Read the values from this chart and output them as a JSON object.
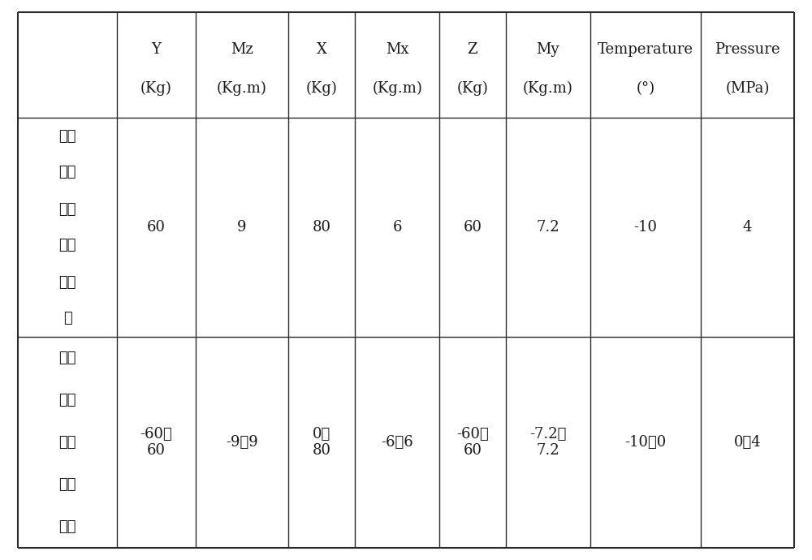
{
  "col_headers_line1": [
    "",
    "Y",
    "Mz",
    "X",
    "Mx",
    "Z",
    "My",
    "Temperature",
    "Pressure"
  ],
  "col_headers_line2": [
    "",
    "(Kg)",
    "(Kg.m)",
    "(Kg)",
    "(Kg.m)",
    "(Kg)",
    "(Kg.m)",
    "(°)",
    "(MPa)"
  ],
  "row1_label_lines": [
    "试验",
    "模型",
    "承受",
    "的极",
    "限载",
    "荷"
  ],
  "row1_values": [
    "60",
    "9",
    "80",
    "6",
    "60",
    "7.2",
    "-10",
    "4"
  ],
  "row2_label_lines": [
    "推力",
    "天平",
    "校准",
    "载荷",
    "范围"
  ],
  "row2_values": [
    "-60～\n60",
    "-9～9",
    "0～\n80",
    "-6～6",
    "-60～\n60",
    "-7.2～\n7.2",
    "-10～0",
    "0～4"
  ],
  "bg_color": "#ffffff",
  "text_color": "#1a1a1a",
  "border_color": "#2a2a2a",
  "font_size_header": 13,
  "font_size_data": 13,
  "font_size_label": 13
}
